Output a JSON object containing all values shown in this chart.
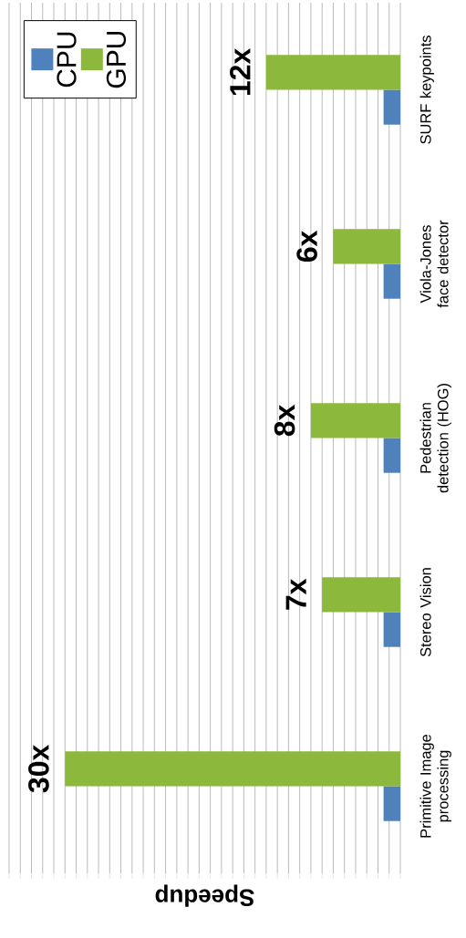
{
  "chart_data": {
    "type": "bar",
    "orientation": "horizontal",
    "xlabel": "Speedup",
    "categories": [
      "SURF keypoints",
      "Viola-Jones face detector",
      "Pedestrian detection (HOG)",
      "Stereo Vision",
      "Primitive Image processing"
    ],
    "series": [
      {
        "name": "CPU",
        "color": "#4f81bd",
        "values": [
          1.5,
          1.5,
          1.5,
          1.5,
          1.5
        ]
      },
      {
        "name": "GPU",
        "color": "#8cb83c",
        "values": [
          12,
          6,
          8,
          7,
          30
        ],
        "value_labels": [
          "12x",
          "6x",
          "8x",
          "7x",
          "30x"
        ]
      }
    ],
    "xlim": [
      35,
      0
    ],
    "xticks": [
      {
        "value": 0,
        "label": null
      },
      {
        "value": 1,
        "label": null
      },
      {
        "value": 2,
        "label": null
      },
      {
        "value": 3,
        "label": null
      },
      {
        "value": 4,
        "label": null
      },
      {
        "value": 5,
        "label": null
      },
      {
        "value": 6,
        "label": null
      },
      {
        "value": 7,
        "label": null
      },
      {
        "value": 8,
        "label": null
      },
      {
        "value": 9,
        "label": null
      },
      {
        "value": 10,
        "label": null
      },
      {
        "value": 11,
        "label": null
      },
      {
        "value": 12,
        "label": null
      },
      {
        "value": 13,
        "label": null
      },
      {
        "value": 14,
        "label": null
      },
      {
        "value": 15,
        "label": null
      },
      {
        "value": 16,
        "label": null
      },
      {
        "value": 17,
        "label": null
      },
      {
        "value": 18,
        "label": null
      },
      {
        "value": 19,
        "label": null
      },
      {
        "value": 20,
        "label": null
      },
      {
        "value": 21,
        "label": null
      },
      {
        "value": 22,
        "label": null
      },
      {
        "value": 23,
        "label": null
      },
      {
        "value": 24,
        "label": null
      },
      {
        "value": 25,
        "label": null
      },
      {
        "value": 26,
        "label": null
      },
      {
        "value": 27,
        "label": null
      },
      {
        "value": 28,
        "label": null
      },
      {
        "value": 29,
        "label": null
      },
      {
        "value": 30,
        "label": null
      },
      {
        "value": 31,
        "label": null
      },
      {
        "value": 32,
        "label": null
      },
      {
        "value": 33,
        "label": null
      },
      {
        "value": 34,
        "label": null
      },
      {
        "value": 35,
        "label": null
      }
    ],
    "tick_labels": "y",
    "grid": "x",
    "legend": "top left"
  }
}
